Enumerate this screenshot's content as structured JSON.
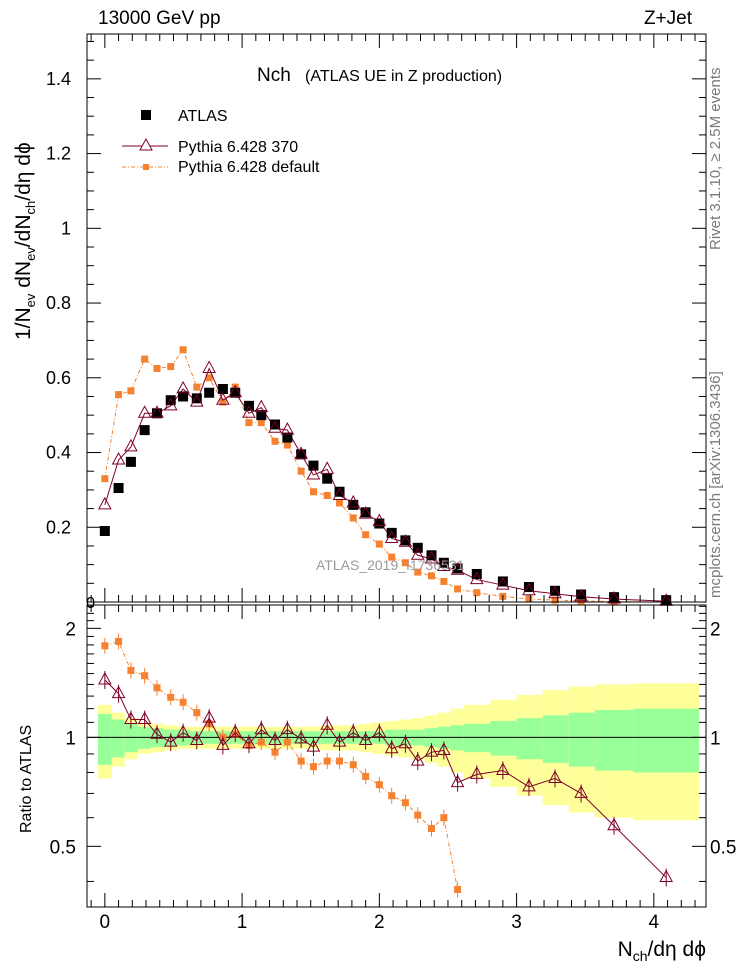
{
  "header": {
    "left": "13000 GeV pp",
    "right": "Z+Jet"
  },
  "side_labels": {
    "rivet": "Rivet 3.1.10, ≥ 2.5M events",
    "mcplots": "mcplots.cern.ch [arXiv:1306.3436]"
  },
  "chart_data": [
    {
      "type": "scatter",
      "panel": "main",
      "title_main": "Nch",
      "title_sub": "(ATLAS UE in Z production)",
      "ylabel": "1/N_ev dN_ev/dN_ch/dη dϕ",
      "xlim": [
        -0.13,
        4.38
      ],
      "ylim": [
        0,
        1.52
      ],
      "yticks": [
        0.2,
        0.4,
        0.6,
        0.8,
        1.0,
        1.2,
        1.4
      ],
      "ytick_labels": [
        "0.2",
        "0.4",
        "0.6",
        "0.8",
        "1",
        "1.2",
        "1.4"
      ],
      "bottom_tick_label": "0",
      "watermark": "ATLAS_2019_I1736531",
      "legend_position": "top-left",
      "legend": [
        "ATLAS",
        "Pythia 6.428 370",
        "Pythia 6.428 default"
      ],
      "series": [
        {
          "name": "ATLAS",
          "marker": "filled-square",
          "color": "#000000",
          "x": [
            0.0,
            0.1,
            0.19,
            0.29,
            0.38,
            0.48,
            0.57,
            0.67,
            0.76,
            0.86,
            0.95,
            1.05,
            1.14,
            1.24,
            1.33,
            1.43,
            1.52,
            1.62,
            1.71,
            1.81,
            1.9,
            2.0,
            2.09,
            2.19,
            2.28,
            2.38,
            2.47,
            2.57,
            2.71,
            2.9,
            3.09,
            3.28,
            3.47,
            3.71,
            4.09
          ],
          "y": [
            0.19,
            0.305,
            0.375,
            0.46,
            0.505,
            0.54,
            0.55,
            0.545,
            0.56,
            0.57,
            0.56,
            0.525,
            0.5,
            0.475,
            0.44,
            0.395,
            0.365,
            0.33,
            0.295,
            0.26,
            0.24,
            0.21,
            0.185,
            0.165,
            0.145,
            0.125,
            0.105,
            0.09,
            0.075,
            0.055,
            0.04,
            0.03,
            0.02,
            0.013,
            0.005
          ]
        },
        {
          "name": "Pythia 6.428 370",
          "marker": "open-triangle",
          "color": "#7f0026",
          "x": [
            0.0,
            0.1,
            0.19,
            0.29,
            0.38,
            0.48,
            0.57,
            0.67,
            0.76,
            0.86,
            0.95,
            1.05,
            1.14,
            1.24,
            1.33,
            1.43,
            1.52,
            1.62,
            1.71,
            1.81,
            1.9,
            2.0,
            2.09,
            2.19,
            2.28,
            2.38,
            2.47,
            2.57,
            2.71,
            2.9,
            3.09,
            3.28,
            3.47,
            3.71,
            4.09
          ],
          "y": [
            0.26,
            0.38,
            0.415,
            0.505,
            0.505,
            0.525,
            0.57,
            0.535,
            0.625,
            0.54,
            0.56,
            0.505,
            0.52,
            0.465,
            0.46,
            0.395,
            0.34,
            0.355,
            0.285,
            0.265,
            0.235,
            0.215,
            0.17,
            0.16,
            0.125,
            0.115,
            0.095,
            0.085,
            0.06,
            0.045,
            0.03,
            0.022,
            0.014,
            0.008,
            0.002
          ]
        },
        {
          "name": "Pythia 6.428 default",
          "marker": "filled-small-square",
          "color": "#f58231",
          "x": [
            0.0,
            0.1,
            0.19,
            0.29,
            0.38,
            0.48,
            0.57,
            0.67,
            0.76,
            0.86,
            0.95,
            1.05,
            1.14,
            1.24,
            1.33,
            1.43,
            1.52,
            1.62,
            1.71,
            1.81,
            1.9,
            2.0,
            2.09,
            2.19,
            2.28,
            2.38,
            2.47,
            2.57,
            2.71,
            2.9,
            3.09,
            3.28,
            3.47,
            3.71,
            4.09
          ],
          "y": [
            0.33,
            0.555,
            0.565,
            0.65,
            0.625,
            0.63,
            0.675,
            0.575,
            0.6,
            0.535,
            0.575,
            0.48,
            0.48,
            0.43,
            0.42,
            0.35,
            0.295,
            0.285,
            0.265,
            0.225,
            0.18,
            0.155,
            0.12,
            0.105,
            0.08,
            0.07,
            0.055,
            0.035,
            0.025,
            0.015,
            0.008,
            0.005,
            0.003,
            0.001,
            0.0
          ]
        }
      ]
    },
    {
      "type": "scatter",
      "panel": "ratio",
      "ylabel": "Ratio to ATLAS",
      "xlabel": "N_ch/dη dϕ",
      "xlim": [
        -0.13,
        4.38
      ],
      "ylim": [
        0.34,
        2.32
      ],
      "yticks": [
        0.5,
        1.0,
        2.0
      ],
      "ytick_labels": [
        "0.5",
        "1",
        "2"
      ],
      "xticks": [
        0,
        1,
        2,
        3,
        4
      ],
      "xtick_labels": [
        "0",
        "1",
        "2",
        "3",
        "4"
      ],
      "bands": {
        "x_edges": [
          -0.05,
          0.05,
          0.145,
          0.24,
          0.335,
          0.43,
          0.525,
          0.62,
          0.715,
          0.81,
          0.905,
          1.0,
          1.095,
          1.19,
          1.285,
          1.38,
          1.475,
          1.57,
          1.665,
          1.76,
          1.855,
          1.95,
          2.045,
          2.14,
          2.235,
          2.33,
          2.425,
          2.52,
          2.615,
          2.81,
          3.0,
          3.19,
          3.38,
          3.57,
          3.85,
          4.33
        ],
        "green_half_width": [
          0.16,
          0.12,
          0.09,
          0.07,
          0.06,
          0.05,
          0.05,
          0.04,
          0.04,
          0.04,
          0.04,
          0.04,
          0.04,
          0.04,
          0.04,
          0.04,
          0.04,
          0.04,
          0.04,
          0.04,
          0.04,
          0.04,
          0.05,
          0.05,
          0.05,
          0.06,
          0.07,
          0.08,
          0.09,
          0.11,
          0.13,
          0.15,
          0.17,
          0.19,
          0.2
        ],
        "yellow_half_width": [
          0.23,
          0.17,
          0.13,
          0.1,
          0.09,
          0.08,
          0.07,
          0.07,
          0.07,
          0.07,
          0.07,
          0.07,
          0.07,
          0.07,
          0.07,
          0.07,
          0.07,
          0.08,
          0.08,
          0.08,
          0.09,
          0.1,
          0.11,
          0.12,
          0.13,
          0.15,
          0.17,
          0.2,
          0.23,
          0.27,
          0.31,
          0.35,
          0.38,
          0.4,
          0.41
        ],
        "green_color": "#99ff99",
        "yellow_color": "#ffff99"
      },
      "series": [
        {
          "name": "Pythia 6.428 370",
          "color": "#7f0026",
          "x": [
            0.0,
            0.1,
            0.19,
            0.29,
            0.38,
            0.48,
            0.57,
            0.67,
            0.76,
            0.86,
            0.95,
            1.05,
            1.14,
            1.24,
            1.33,
            1.43,
            1.52,
            1.62,
            1.71,
            1.81,
            1.9,
            2.0,
            2.09,
            2.19,
            2.28,
            2.38,
            2.47,
            2.57,
            2.71,
            2.9,
            3.09,
            3.28,
            3.47,
            3.71,
            4.09
          ],
          "y": [
            1.44,
            1.32,
            1.12,
            1.12,
            1.02,
            0.97,
            1.03,
            0.98,
            1.13,
            0.95,
            1.03,
            0.96,
            1.05,
            0.98,
            1.05,
            0.99,
            0.94,
            1.08,
            0.97,
            1.03,
            0.98,
            1.03,
            0.93,
            0.96,
            0.86,
            0.91,
            0.92,
            0.75,
            0.79,
            0.81,
            0.73,
            0.77,
            0.7,
            0.57,
            0.41
          ]
        },
        {
          "name": "Pythia 6.428 default",
          "color": "#f58231",
          "x": [
            0.0,
            0.1,
            0.19,
            0.29,
            0.38,
            0.48,
            0.57,
            0.67,
            0.76,
            0.86,
            0.95,
            1.05,
            1.14,
            1.24,
            1.33,
            1.43,
            1.52,
            1.62,
            1.71,
            1.81,
            1.9,
            2.0,
            2.09,
            2.19,
            2.28,
            2.38,
            2.47,
            2.57
          ],
          "y": [
            1.79,
            1.84,
            1.53,
            1.48,
            1.37,
            1.29,
            1.25,
            1.17,
            1.09,
            1.0,
            1.02,
            0.95,
            0.97,
            0.91,
            0.97,
            0.86,
            0.83,
            0.86,
            0.86,
            0.84,
            0.78,
            0.74,
            0.69,
            0.66,
            0.61,
            0.56,
            0.6,
            0.38
          ]
        }
      ]
    }
  ]
}
